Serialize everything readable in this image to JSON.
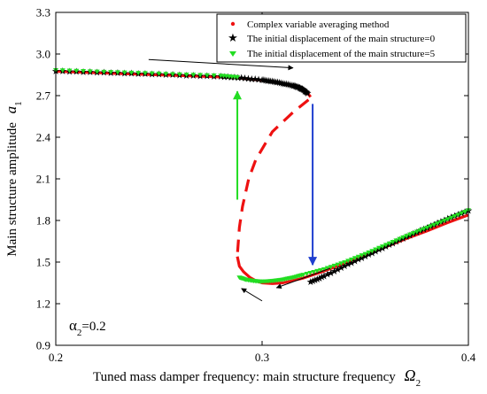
{
  "chart_data": {
    "type": "scatter",
    "xlabel": "Tuned mass damper frequency: main structure frequency",
    "xlabel_symbol": "Ω",
    "xlabel_sub": "2",
    "ylabel": "Main structure amplitude",
    "ylabel_symbol": "a",
    "ylabel_sub": "1",
    "annotation": {
      "symbol": "α",
      "sub": "2",
      "text": "=0.2"
    },
    "xlim": [
      0.2,
      0.4
    ],
    "ylim": [
      0.9,
      3.3
    ],
    "xticks": [
      0.2,
      0.3,
      0.4
    ],
    "xtick_labels": [
      "0.2",
      "0.3",
      "0.4"
    ],
    "yticks": [
      0.9,
      1.2,
      1.5,
      1.8,
      2.1,
      2.4,
      2.7,
      3.0,
      3.3
    ],
    "ytick_labels": [
      "0.9",
      "1.2",
      "1.5",
      "1.8",
      "2.1",
      "2.4",
      "2.7",
      "3.0",
      "3.3"
    ],
    "legend_position": "top-right",
    "series": [
      {
        "name": "Complex variable averaging method",
        "marker": "dot",
        "color": "#ee1111",
        "branches": [
          {
            "style": "solid",
            "x": [
              0.2,
              0.22,
              0.24,
              0.26,
              0.28,
              0.29,
              0.3,
              0.305,
              0.31,
              0.315,
              0.318,
              0.32,
              0.322,
              0.3235
            ],
            "y": [
              2.875,
              2.865,
              2.855,
              2.845,
              2.835,
              2.825,
              2.81,
              2.8,
              2.785,
              2.77,
              2.755,
              2.74,
              2.72,
              2.69
            ]
          },
          {
            "style": "dashed",
            "x": [
              0.3225,
              0.315,
              0.305,
              0.297,
              0.2935,
              0.2905,
              0.289,
              0.288
            ],
            "y": [
              2.67,
              2.58,
              2.44,
              2.24,
              2.1,
              1.9,
              1.75,
              1.55
            ]
          },
          {
            "style": "solid",
            "x": [
              0.288,
              0.289,
              0.291,
              0.294,
              0.297,
              0.3,
              0.305,
              0.31,
              0.32,
              0.33,
              0.34,
              0.35,
              0.36,
              0.37,
              0.38,
              0.39,
              0.4
            ],
            "y": [
              1.54,
              1.47,
              1.43,
              1.39,
              1.365,
              1.35,
              1.345,
              1.35,
              1.385,
              1.435,
              1.49,
              1.55,
              1.61,
              1.67,
              1.725,
              1.785,
              1.84
            ]
          }
        ]
      },
      {
        "name": "The initial displacement of the main structure=0",
        "marker": "star",
        "color": "#1f3fcf",
        "branches": [
          {
            "style": "markers",
            "x": [
              0.2,
              0.22,
              0.24,
              0.26,
              0.28,
              0.29,
              0.3,
              0.305,
              0.31,
              0.315,
              0.318,
              0.32,
              0.322
            ],
            "y": [
              2.88,
              2.87,
              2.86,
              2.85,
              2.84,
              2.83,
              2.815,
              2.805,
              2.79,
              2.775,
              2.76,
              2.745,
              2.72
            ]
          },
          {
            "style": "markers",
            "x": [
              0.3235,
              0.33,
              0.34,
              0.35,
              0.36,
              0.37,
              0.38,
              0.39,
              0.4
            ],
            "y": [
              1.36,
              1.4,
              1.475,
              1.545,
              1.615,
              1.685,
              1.75,
              1.815,
              1.875
            ]
          }
        ]
      },
      {
        "name": "The initial displacement of the main structure=5",
        "marker": "triangle-down",
        "color": "#22dd22",
        "branches": [
          {
            "style": "markers",
            "x": [
              0.2,
              0.22,
              0.24,
              0.26,
              0.28,
              0.288
            ],
            "y": [
              2.885,
              2.875,
              2.865,
              2.855,
              2.845,
              2.835
            ]
          },
          {
            "style": "markers",
            "x": [
              0.289,
              0.292,
              0.296,
              0.3,
              0.305,
              0.31,
              0.315,
              0.32,
              0.33,
              0.34,
              0.35,
              0.36,
              0.37,
              0.38,
              0.39,
              0.4
            ],
            "y": [
              1.39,
              1.375,
              1.365,
              1.36,
              1.365,
              1.375,
              1.39,
              1.41,
              1.45,
              1.5,
              1.56,
              1.625,
              1.69,
              1.75,
              1.81,
              1.875
            ]
          }
        ]
      }
    ],
    "arrows": [
      {
        "color": "#000000",
        "from": [
          0.245,
          2.96
        ],
        "to": [
          0.315,
          2.9
        ]
      },
      {
        "color": "#1f3fcf",
        "from": [
          0.3245,
          2.64
        ],
        "to": [
          0.3245,
          1.48
        ]
      },
      {
        "color": "#22dd22",
        "from": [
          0.288,
          1.95
        ],
        "to": [
          0.288,
          2.73
        ]
      },
      {
        "color": "#000000",
        "from": [
          0.333,
          1.455
        ],
        "to": [
          0.307,
          1.315
        ]
      },
      {
        "color": "#000000",
        "from": [
          0.3,
          1.22
        ],
        "to": [
          0.29,
          1.31
        ]
      }
    ]
  }
}
